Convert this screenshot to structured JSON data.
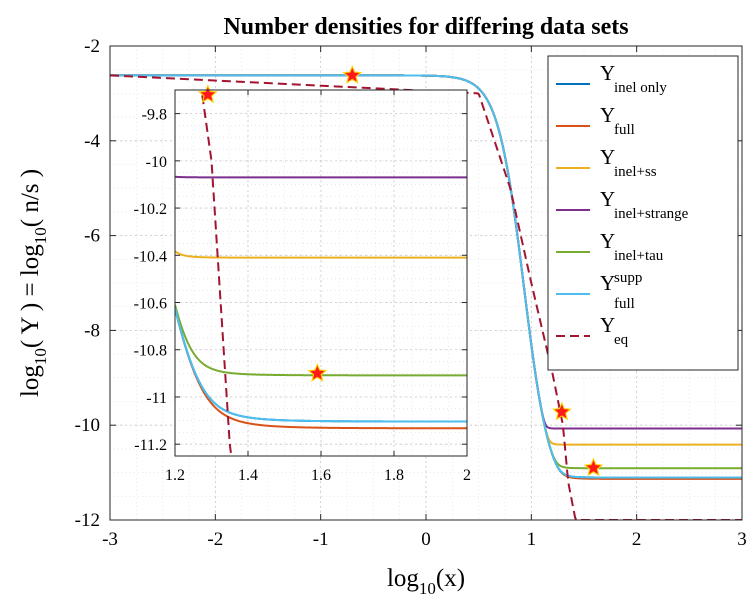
{
  "chart_data": {
    "type": "line",
    "title": "Number densities for differing data sets",
    "xlabel": {
      "base": "log",
      "sub": "10",
      "rest": "(x)"
    },
    "ylabel": {
      "a": "log",
      "asub": "10",
      "b": "( Y ) = log",
      "bsub": "10",
      "c": "( n/s )"
    },
    "xlim": [
      -3,
      3
    ],
    "ylim": [
      -12,
      -2
    ],
    "xticks": [
      "-3",
      "-2",
      "-1",
      "0",
      "1",
      "2",
      "3"
    ],
    "yticks": [
      "-12",
      "-10",
      "-8",
      "-6",
      "-4",
      "-2"
    ],
    "grid": true,
    "legend_position": "top-right",
    "legend": [
      {
        "base": "Y",
        "sub": "inel only",
        "sup": ""
      },
      {
        "base": "Y",
        "sub": "full",
        "sup": ""
      },
      {
        "base": "Y",
        "sub": "inel+ss",
        "sup": ""
      },
      {
        "base": "Y",
        "sub": "inel+strange",
        "sup": ""
      },
      {
        "base": "Y",
        "sub": "inel+tau",
        "sup": ""
      },
      {
        "base": "Y",
        "sub": "full",
        "sup": "supp"
      },
      {
        "base": "Y",
        "sub": "eq",
        "sup": ""
      }
    ],
    "series_colors": [
      "#0072BD",
      "#D95319",
      "#EDB120",
      "#7E2F8E",
      "#77AC30",
      "#4DBEEE",
      "#A2142F"
    ],
    "y_initial": -2.62,
    "series": [
      {
        "name": "Y_inel only",
        "freeze_out_value": -11.11
      },
      {
        "name": "Y_full",
        "freeze_out_value": -11.14
      },
      {
        "name": "Y_inel+ss",
        "freeze_out_value": -10.41
      },
      {
        "name": "Y_inel+strange",
        "freeze_out_value": -10.07
      },
      {
        "name": "Y_inel+tau",
        "freeze_out_value": -10.91
      },
      {
        "name": "Y_full^supp",
        "freeze_out_value": -11.11
      },
      {
        "name": "Y_eq",
        "style": "dashed",
        "points": [
          [
            -3,
            -2.62
          ],
          [
            0.5,
            -3.0
          ],
          [
            0.8,
            -5.0
          ],
          [
            1.0,
            -7.0
          ],
          [
            1.2,
            -8.9
          ],
          [
            1.3,
            -10.0
          ],
          [
            1.35,
            -11.2
          ],
          [
            1.42,
            -12.0
          ]
        ]
      }
    ],
    "markers": [
      {
        "x": -0.7,
        "y": -2.62
      },
      {
        "x": 1.29,
        "y": -9.72
      },
      {
        "x": 1.59,
        "y": -10.9
      }
    ],
    "inset": {
      "xlim": [
        1.2,
        2.0
      ],
      "ylim": [
        -11.25,
        -9.7
      ],
      "xticks": [
        "1.2",
        "1.4",
        "1.6",
        "1.8",
        "2"
      ],
      "yticks": [
        "-9.8",
        "-10",
        "-10.2",
        "-10.4",
        "-10.6",
        "-10.8",
        "-11",
        "-11.2"
      ],
      "markers": [
        {
          "x": 1.29,
          "y": -9.72
        },
        {
          "x": 1.59,
          "y": -10.9
        }
      ]
    }
  }
}
